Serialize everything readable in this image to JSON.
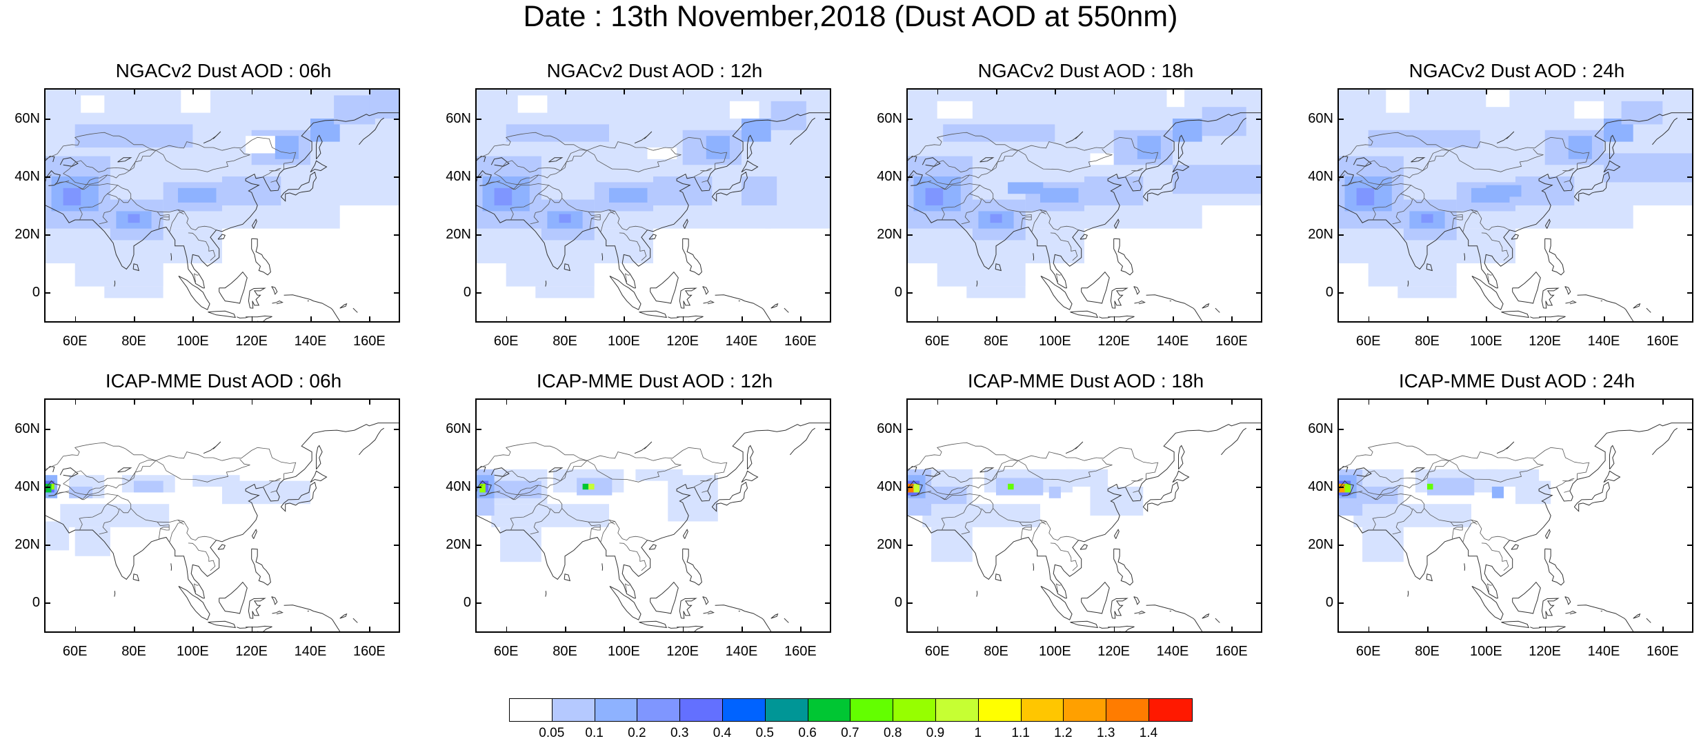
{
  "title": "Date : 13th November,2018 (Dust AOD at 550nm)",
  "axes": {
    "y_ticks": [
      "60N",
      "40N",
      "20N",
      "0"
    ],
    "x_ticks": [
      "60E",
      "80E",
      "100E",
      "120E",
      "140E",
      "160E"
    ]
  },
  "rows": [
    {
      "model": "NGACv2",
      "panels": [
        {
          "title": "NGACv2 Dust AOD : 06h",
          "hour": "06h"
        },
        {
          "title": "NGACv2 Dust AOD : 12h",
          "hour": "12h"
        },
        {
          "title": "NGACv2 Dust AOD : 18h",
          "hour": "18h"
        },
        {
          "title": "NGACv2 Dust AOD : 24h",
          "hour": "24h"
        }
      ]
    },
    {
      "model": "ICAP-MME",
      "panels": [
        {
          "title": "ICAP-MME Dust AOD : 06h",
          "hour": "06h"
        },
        {
          "title": "ICAP-MME Dust AOD : 12h",
          "hour": "12h"
        },
        {
          "title": "ICAP-MME Dust AOD : 18h",
          "hour": "18h"
        },
        {
          "title": "ICAP-MME Dust AOD : 24h",
          "hour": "24h"
        }
      ]
    }
  ],
  "colorbar": {
    "labels": [
      "0.05",
      "0.1",
      "0.2",
      "0.3",
      "0.4",
      "0.5",
      "0.6",
      "0.7",
      "0.8",
      "0.9",
      "1",
      "1.1",
      "1.2",
      "1.3",
      "1.4"
    ],
    "colors": [
      "#ffffff",
      "#d6e2ff",
      "#b5c9ff",
      "#8eb2ff",
      "#7f96ff",
      "#6370ff",
      "#0063ff",
      "#009696",
      "#00c633",
      "#63ff00",
      "#96ff00",
      "#c6ff33",
      "#ffff00",
      "#ffc600",
      "#ffa000",
      "#ff7c00",
      "#ff1900"
    ]
  }
}
